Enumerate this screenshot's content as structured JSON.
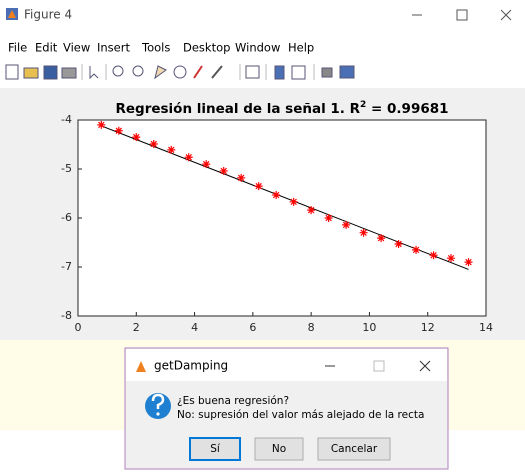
{
  "window": {
    "title": "Figure 4",
    "menu": [
      "File",
      "Edit",
      "View",
      "Insert",
      "Tools",
      "Desktop",
      "Window",
      "Help"
    ]
  },
  "chart_data": {
    "type": "scatter",
    "title": [
      "Regresión lineal de la señal 1. R",
      "2",
      " = 0.99681"
    ],
    "x": [
      0.8,
      1.4,
      2.0,
      2.6,
      3.2,
      3.8,
      4.4,
      5.0,
      5.6,
      6.2,
      6.8,
      7.4,
      8.0,
      8.6,
      9.2,
      9.8,
      10.4,
      11.0,
      11.6,
      12.2,
      12.8,
      13.4
    ],
    "values": [
      -4.1,
      -4.22,
      -4.35,
      -4.49,
      -4.61,
      -4.76,
      -4.9,
      -5.04,
      -5.18,
      -5.35,
      -5.53,
      -5.67,
      -5.84,
      -6.0,
      -6.14,
      -6.3,
      -6.41,
      -6.53,
      -6.65,
      -6.76,
      -6.82,
      -6.9
    ],
    "color": "#ff0000",
    "fit": {
      "x": [
        0.8,
        13.4
      ],
      "values": [
        -4.12,
        -7.05
      ],
      "color": "#000000"
    },
    "xlim": [
      0,
      14
    ],
    "xticks": [
      0,
      2,
      4,
      6,
      8,
      10,
      12,
      14
    ],
    "ylim": [
      -8,
      -4
    ],
    "yticks": [
      -8,
      -7,
      -6,
      -5,
      -4
    ]
  },
  "dialog": {
    "title": "getDamping",
    "message": [
      "¿Es buena regresión?",
      "No: supresión del valor más alejado de la recta"
    ],
    "buttons": [
      "Sí",
      "No",
      "Cancelar"
    ]
  }
}
